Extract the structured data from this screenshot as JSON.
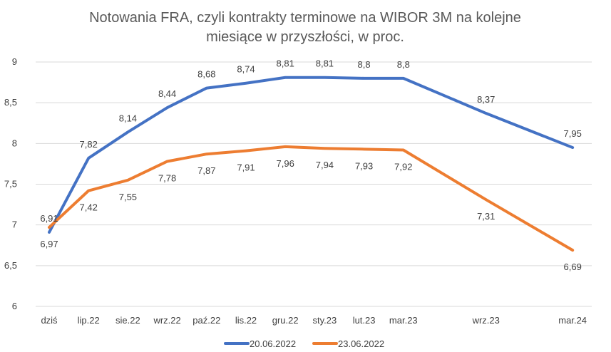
{
  "chart_data": {
    "type": "line",
    "title_lines": [
      "Notowania FRA, czyli kontrakty terminowe na WIBOR 3M na kolejne",
      "miesiące w przyszłości, w proc."
    ],
    "categories": [
      "dziś",
      "lip.22",
      "sie.22",
      "wrz.22",
      "paź.22",
      "lis.22",
      "gru.22",
      "sty.23",
      "lut.23",
      "mar.23",
      "wrz.23",
      "mar.24"
    ],
    "category_positions": [
      0,
      1,
      2,
      3,
      4,
      5,
      6,
      7,
      8,
      9,
      11.1,
      13.3
    ],
    "y_ticks": [
      "6",
      "6,5",
      "7",
      "7,5",
      "8",
      "8,5",
      "9"
    ],
    "y_tick_values": [
      6,
      6.5,
      7,
      7.5,
      8,
      8.5,
      9
    ],
    "ylim": [
      6,
      9
    ],
    "grid": true,
    "legend_position": "bottom",
    "series": [
      {
        "name": "20.06.2022",
        "color": "#4472c4",
        "values": [
          6.91,
          7.82,
          8.14,
          8.44,
          8.68,
          8.74,
          8.81,
          8.81,
          8.8,
          8.8,
          8.37,
          7.95
        ],
        "labels": [
          "6,91",
          "7,82",
          "8,14",
          "8,44",
          "8,68",
          "8,74",
          "8,81",
          "8,81",
          "8,8",
          "8,8",
          "8,37",
          "7,95"
        ]
      },
      {
        "name": "23.06.2022",
        "color": "#ed7d31",
        "values": [
          6.97,
          7.42,
          7.55,
          7.78,
          7.87,
          7.91,
          7.96,
          7.94,
          7.93,
          7.92,
          7.31,
          6.69
        ],
        "labels": [
          "6,97",
          "7,42",
          "7,55",
          "7,78",
          "7,87",
          "7,91",
          "7,96",
          "7,94",
          "7,93",
          "7,92",
          "7,31",
          "6,69"
        ]
      }
    ]
  }
}
